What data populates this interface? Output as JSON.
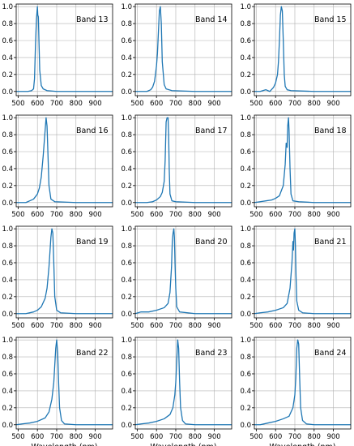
{
  "figure": {
    "xlabel": "Wavelength (nm)"
  },
  "colors": {
    "line": "#1f77b4",
    "grid": "#b0b0b0",
    "axis": "#000000"
  },
  "chart_data": [
    {
      "type": "line",
      "title": "Band 13",
      "xlabel": "",
      "ylabel": "",
      "xlim": [
        490,
        990
      ],
      "ylim": [
        -0.05,
        1.03
      ],
      "grid": true,
      "xticks": [
        500,
        600,
        700,
        800,
        900
      ],
      "yticks": [
        0.0,
        0.2,
        0.4,
        0.6,
        0.8,
        1.0
      ],
      "xticklabels": [
        "500",
        "600",
        "700",
        "800",
        "900"
      ],
      "yticklabels": [
        "0.0",
        "0.2",
        "0.4",
        "0.6",
        "0.8",
        "1.0"
      ],
      "x": [
        490,
        550,
        570,
        580,
        585,
        590,
        595,
        600,
        602,
        605,
        608,
        612,
        620,
        630,
        650,
        700,
        800,
        900,
        990
      ],
      "y": [
        0.0,
        0.0,
        0.01,
        0.03,
        0.15,
        0.55,
        0.85,
        1.0,
        0.9,
        0.88,
        0.6,
        0.25,
        0.07,
        0.03,
        0.01,
        0.0,
        0.0,
        0.0,
        0.0
      ]
    },
    {
      "type": "line",
      "title": "Band 14",
      "xlabel": "",
      "ylabel": "",
      "xlim": [
        490,
        990
      ],
      "ylim": [
        -0.05,
        1.03
      ],
      "grid": true,
      "xticks": [
        500,
        600,
        700,
        800,
        900
      ],
      "yticks": [
        0.0,
        0.2,
        0.4,
        0.6,
        0.8,
        1.0
      ],
      "xticklabels": [
        "500",
        "600",
        "700",
        "800",
        "900"
      ],
      "yticklabels": [
        "0.0",
        "0.2",
        "0.4",
        "0.6",
        "0.8",
        "1.0"
      ],
      "x": [
        490,
        550,
        570,
        580,
        590,
        600,
        605,
        610,
        615,
        620,
        625,
        630,
        640,
        650,
        680,
        800,
        990
      ],
      "y": [
        0.0,
        0.0,
        0.02,
        0.05,
        0.12,
        0.3,
        0.45,
        0.7,
        0.95,
        1.0,
        0.8,
        0.35,
        0.08,
        0.03,
        0.01,
        0.0,
        0.0
      ]
    },
    {
      "type": "line",
      "title": "Band 15",
      "xlabel": "",
      "ylabel": "",
      "xlim": [
        490,
        990
      ],
      "ylim": [
        -0.05,
        1.03
      ],
      "grid": true,
      "xticks": [
        500,
        600,
        700,
        800,
        900
      ],
      "yticks": [
        0.0,
        0.2,
        0.4,
        0.6,
        0.8,
        1.0
      ],
      "xticklabels": [
        "500",
        "600",
        "700",
        "800",
        "900"
      ],
      "yticklabels": [
        "0.0",
        "0.2",
        "0.4",
        "0.6",
        "0.8",
        "1.0"
      ],
      "x": [
        490,
        520,
        550,
        570,
        590,
        600,
        610,
        615,
        620,
        625,
        630,
        635,
        640,
        645,
        650,
        660,
        680,
        800,
        990
      ],
      "y": [
        0.0,
        0.0,
        0.02,
        0.0,
        0.05,
        0.1,
        0.2,
        0.35,
        0.6,
        0.9,
        1.0,
        0.95,
        0.6,
        0.2,
        0.06,
        0.02,
        0.01,
        0.0,
        0.0
      ]
    },
    {
      "type": "line",
      "title": "Band 16",
      "xlabel": "",
      "ylabel": "",
      "xlim": [
        490,
        990
      ],
      "ylim": [
        -0.05,
        1.03
      ],
      "grid": true,
      "xticks": [
        500,
        600,
        700,
        800,
        900
      ],
      "yticks": [
        0.0,
        0.2,
        0.4,
        0.6,
        0.8,
        1.0
      ],
      "xticklabels": [
        "500",
        "600",
        "700",
        "800",
        "900"
      ],
      "yticklabels": [
        "0.0",
        "0.2",
        "0.4",
        "0.6",
        "0.8",
        "1.0"
      ],
      "x": [
        490,
        540,
        560,
        580,
        600,
        610,
        620,
        630,
        640,
        645,
        650,
        655,
        660,
        670,
        690,
        800,
        990
      ],
      "y": [
        0.0,
        0.0,
        0.02,
        0.04,
        0.1,
        0.17,
        0.3,
        0.55,
        0.85,
        1.0,
        0.9,
        0.55,
        0.2,
        0.04,
        0.01,
        0.0,
        0.0
      ]
    },
    {
      "type": "line",
      "title": "Band 17",
      "xlabel": "",
      "ylabel": "",
      "xlim": [
        490,
        990
      ],
      "ylim": [
        -0.05,
        1.03
      ],
      "grid": true,
      "xticks": [
        500,
        600,
        700,
        800,
        900
      ],
      "yticks": [
        0.0,
        0.2,
        0.4,
        0.6,
        0.8,
        1.0
      ],
      "xticklabels": [
        "500",
        "600",
        "700",
        "800",
        "900"
      ],
      "yticklabels": [
        "0.0",
        "0.2",
        "0.4",
        "0.6",
        "0.8",
        "1.0"
      ],
      "x": [
        490,
        550,
        580,
        600,
        620,
        630,
        640,
        645,
        650,
        655,
        660,
        663,
        666,
        670,
        680,
        700,
        800,
        990
      ],
      "y": [
        0.0,
        0.0,
        0.01,
        0.03,
        0.07,
        0.12,
        0.25,
        0.5,
        0.95,
        1.0,
        1.0,
        0.8,
        0.4,
        0.1,
        0.02,
        0.01,
        0.0,
        0.0
      ]
    },
    {
      "type": "line",
      "title": "Band 18",
      "xlabel": "",
      "ylabel": "",
      "xlim": [
        490,
        990
      ],
      "ylim": [
        -0.05,
        1.03
      ],
      "grid": true,
      "xticks": [
        500,
        600,
        700,
        800,
        900
      ],
      "yticks": [
        0.0,
        0.2,
        0.4,
        0.6,
        0.8,
        1.0
      ],
      "xticklabels": [
        "500",
        "600",
        "700",
        "800",
        "900"
      ],
      "yticklabels": [
        "0.0",
        "0.2",
        "0.4",
        "0.6",
        "0.8",
        "1.0"
      ],
      "x": [
        490,
        520,
        550,
        580,
        600,
        620,
        640,
        650,
        655,
        660,
        663,
        667,
        670,
        675,
        680,
        690,
        720,
        800,
        990
      ],
      "y": [
        0.0,
        0.01,
        0.02,
        0.03,
        0.05,
        0.08,
        0.2,
        0.45,
        0.7,
        0.65,
        0.9,
        1.0,
        0.85,
        0.4,
        0.1,
        0.02,
        0.01,
        0.0,
        0.0
      ]
    },
    {
      "type": "line",
      "title": "Band 19",
      "xlabel": "",
      "ylabel": "",
      "xlim": [
        490,
        990
      ],
      "ylim": [
        -0.05,
        1.03
      ],
      "grid": true,
      "xticks": [
        500,
        600,
        700,
        800,
        900
      ],
      "yticks": [
        0.0,
        0.2,
        0.4,
        0.6,
        0.8,
        1.0
      ],
      "xticklabels": [
        "500",
        "600",
        "700",
        "800",
        "900"
      ],
      "yticklabels": [
        "0.0",
        "0.2",
        "0.4",
        "0.6",
        "0.8",
        "1.0"
      ],
      "x": [
        490,
        540,
        580,
        600,
        620,
        640,
        650,
        660,
        670,
        675,
        680,
        685,
        690,
        700,
        720,
        800,
        990
      ],
      "y": [
        0.0,
        0.0,
        0.02,
        0.04,
        0.08,
        0.18,
        0.3,
        0.55,
        0.9,
        1.0,
        0.95,
        0.6,
        0.2,
        0.04,
        0.01,
        0.0,
        0.0
      ]
    },
    {
      "type": "line",
      "title": "Band 20",
      "xlabel": "",
      "ylabel": "",
      "xlim": [
        490,
        990
      ],
      "ylim": [
        -0.05,
        1.03
      ],
      "grid": true,
      "xticks": [
        500,
        600,
        700,
        800,
        900
      ],
      "yticks": [
        0.0,
        0.2,
        0.4,
        0.6,
        0.8,
        1.0
      ],
      "xticklabels": [
        "500",
        "600",
        "700",
        "800",
        "900"
      ],
      "yticklabels": [
        "0.0",
        "0.2",
        "0.4",
        "0.6",
        "0.8",
        "1.0"
      ],
      "x": [
        490,
        520,
        560,
        600,
        640,
        660,
        670,
        678,
        682,
        686,
        690,
        693,
        696,
        700,
        705,
        720,
        800,
        990
      ],
      "y": [
        0.0,
        0.02,
        0.02,
        0.04,
        0.07,
        0.12,
        0.25,
        0.55,
        0.85,
        0.95,
        1.0,
        0.9,
        0.6,
        0.3,
        0.08,
        0.02,
        0.0,
        0.0
      ]
    },
    {
      "type": "line",
      "title": "Band 21",
      "xlabel": "",
      "ylabel": "",
      "xlim": [
        490,
        990
      ],
      "ylim": [
        -0.05,
        1.03
      ],
      "grid": true,
      "xticks": [
        500,
        600,
        700,
        800,
        900
      ],
      "yticks": [
        0.0,
        0.2,
        0.4,
        0.6,
        0.8,
        1.0
      ],
      "xticklabels": [
        "500",
        "600",
        "700",
        "800",
        "900"
      ],
      "yticklabels": [
        "0.0",
        "0.2",
        "0.4",
        "0.6",
        "0.8",
        "1.0"
      ],
      "x": [
        490,
        520,
        560,
        600,
        640,
        660,
        675,
        685,
        690,
        693,
        696,
        700,
        703,
        706,
        710,
        720,
        740,
        800,
        990
      ],
      "y": [
        0.0,
        0.01,
        0.02,
        0.04,
        0.07,
        0.12,
        0.3,
        0.6,
        0.85,
        0.75,
        0.95,
        1.0,
        0.8,
        0.45,
        0.15,
        0.04,
        0.01,
        0.0,
        0.0
      ]
    },
    {
      "type": "line",
      "title": "Band 22",
      "xlabel": "",
      "ylabel": "",
      "xlim": [
        490,
        990
      ],
      "ylim": [
        -0.05,
        1.03
      ],
      "grid": true,
      "xticks": [
        500,
        600,
        700,
        800,
        900
      ],
      "yticks": [
        0.0,
        0.2,
        0.4,
        0.6,
        0.8,
        1.0
      ],
      "xticklabels": [
        "500",
        "600",
        "700",
        "800",
        "900"
      ],
      "yticklabels": [
        "0.0",
        "0.2",
        "0.4",
        "0.6",
        "0.8",
        "1.0"
      ],
      "x": [
        490,
        520,
        560,
        600,
        640,
        660,
        675,
        685,
        690,
        695,
        700,
        705,
        710,
        715,
        725,
        740,
        800,
        990
      ],
      "y": [
        0.0,
        0.01,
        0.02,
        0.04,
        0.08,
        0.15,
        0.3,
        0.5,
        0.7,
        0.9,
        1.0,
        0.85,
        0.5,
        0.2,
        0.05,
        0.01,
        0.0,
        0.0
      ]
    },
    {
      "type": "line",
      "title": "Band 23",
      "xlabel": "",
      "ylabel": "",
      "xlim": [
        490,
        990
      ],
      "ylim": [
        -0.05,
        1.03
      ],
      "grid": true,
      "xticks": [
        500,
        600,
        700,
        800,
        900
      ],
      "yticks": [
        0.0,
        0.2,
        0.4,
        0.6,
        0.8,
        1.0
      ],
      "xticklabels": [
        "500",
        "600",
        "700",
        "800",
        "900"
      ],
      "yticklabels": [
        "0.0",
        "0.2",
        "0.4",
        "0.6",
        "0.8",
        "1.0"
      ],
      "x": [
        490,
        520,
        560,
        600,
        640,
        670,
        685,
        695,
        700,
        705,
        710,
        715,
        720,
        725,
        735,
        750,
        800,
        990
      ],
      "y": [
        0.0,
        0.01,
        0.02,
        0.04,
        0.07,
        0.12,
        0.2,
        0.35,
        0.5,
        0.75,
        1.0,
        0.9,
        0.5,
        0.2,
        0.05,
        0.01,
        0.0,
        0.0
      ]
    },
    {
      "type": "line",
      "title": "Band 24",
      "xlabel": "",
      "ylabel": "",
      "xlim": [
        490,
        990
      ],
      "ylim": [
        -0.05,
        1.03
      ],
      "grid": true,
      "xticks": [
        500,
        600,
        700,
        800,
        900
      ],
      "yticks": [
        0.0,
        0.2,
        0.4,
        0.6,
        0.8,
        1.0
      ],
      "xticklabels": [
        "500",
        "600",
        "700",
        "800",
        "900"
      ],
      "yticklabels": [
        "0.0",
        "0.2",
        "0.4",
        "0.6",
        "0.8",
        "1.0"
      ],
      "x": [
        490,
        520,
        560,
        600,
        640,
        670,
        690,
        700,
        705,
        710,
        715,
        720,
        725,
        730,
        740,
        760,
        800,
        990
      ],
      "y": [
        0.0,
        0.0,
        0.02,
        0.04,
        0.07,
        0.1,
        0.2,
        0.35,
        0.55,
        0.9,
        1.0,
        0.95,
        0.55,
        0.2,
        0.05,
        0.01,
        0.0,
        0.0
      ]
    }
  ]
}
